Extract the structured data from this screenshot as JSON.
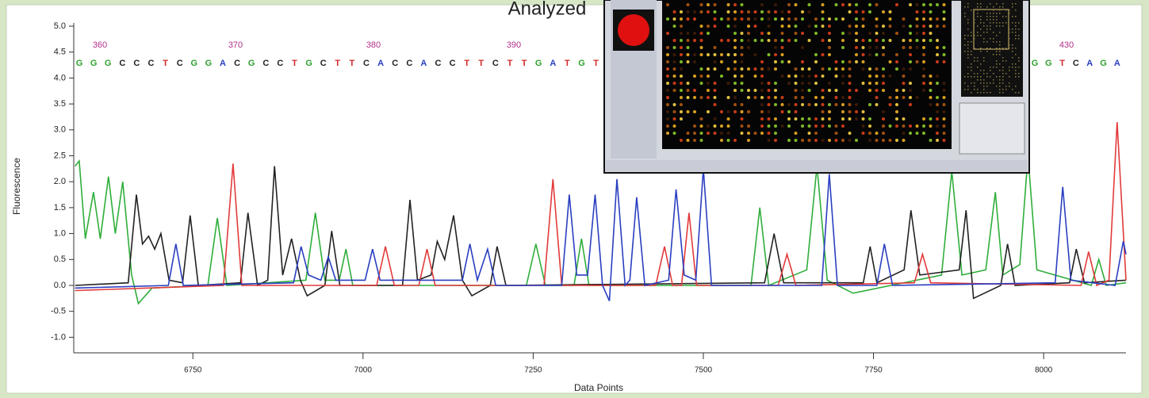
{
  "chart_data": {
    "type": "line",
    "title": "Analyzed",
    "xlabel": "Data Points",
    "ylabel": "Fluorescence",
    "xlim": [
      6575,
      8121
    ],
    "ylim": [
      -1.3,
      5.0
    ],
    "xticks": [
      6750,
      7000,
      7250,
      7500,
      7750,
      8000
    ],
    "yticks": [
      {
        "value": 5,
        "label": "5.0"
      },
      4.5,
      {
        "value": 4,
        "label": "4.0"
      },
      3.5,
      {
        "value": 3,
        "label": "3.0"
      },
      2.5,
      {
        "value": 2,
        "label": "2.0"
      },
      1.5,
      {
        "value": 1,
        "label": "1.0"
      },
      0.5,
      {
        "value": 0,
        "label": "0.0"
      },
      -0.5,
      {
        "value": -1,
        "label": "-1.0"
      }
    ],
    "base_numbers": [
      360,
      370,
      380,
      390,
      430
    ],
    "sequence": [
      [
        "G",
        "G",
        "G",
        "C",
        "C",
        "C",
        "T",
        "C",
        "G",
        "G",
        "A",
        "C",
        "G",
        "C",
        "C",
        "T",
        "G",
        "C",
        "T",
        "T",
        "C",
        "A",
        "C",
        "C",
        "A",
        "C",
        "C",
        "T",
        "T",
        "C",
        "T",
        "T",
        "G",
        "A",
        "T",
        "G",
        "T"
      ],
      [
        "G",
        "G",
        "T",
        "C",
        "A",
        "G",
        "A"
      ]
    ],
    "base_colors": {
      "A": "#2a3fc0",
      "C": "#222222",
      "G": "#2fa02f",
      "T": "#d42a2a"
    },
    "series": [
      {
        "color": "#2fae3a",
        "x": [
          6577,
          6583,
          6592,
          6604,
          6614,
          6626,
          6636,
          6647,
          6660,
          6670,
          6690,
          6772,
          6786,
          6800,
          6916,
          6930,
          6944,
          6965,
          6975,
          6985,
          7240,
          7254,
          7268,
          7310,
          7321,
          7332,
          7570,
          7583,
          7596,
          7652,
          7667,
          7682,
          7720,
          7850,
          7865,
          7880,
          7915,
          7929,
          7940,
          7965,
          7977,
          7990,
          8070,
          8081,
          8092,
          8121
        ],
        "values": [
          2.3,
          2.4,
          0.9,
          1.8,
          0.9,
          2.1,
          1.0,
          2.0,
          0.2,
          -0.35,
          -0.05,
          0.0,
          1.3,
          0.0,
          0.1,
          1.4,
          0.1,
          0.1,
          0.7,
          0.0,
          0.0,
          0.8,
          0.0,
          0.0,
          0.9,
          0.0,
          0.0,
          1.5,
          0.0,
          0.3,
          2.3,
          0.1,
          -0.15,
          0.2,
          2.2,
          0.2,
          0.3,
          1.8,
          0.2,
          0.4,
          2.5,
          0.3,
          0.0,
          0.5,
          0.0,
          0.05
        ]
      },
      {
        "color": "#222222",
        "x": [
          6577,
          6655,
          6667,
          6676,
          6685,
          6694,
          6703,
          6715,
          6735,
          6746,
          6758,
          6820,
          6831,
          6845,
          6860,
          6870,
          6882,
          6895,
          6908,
          6918,
          6944,
          6954,
          6966,
          7058,
          7069,
          7080,
          7100,
          7109,
          7120,
          7133,
          7146,
          7160,
          7187,
          7197,
          7210,
          7590,
          7604,
          7618,
          7735,
          7745,
          7755,
          7795,
          7805,
          7818,
          7876,
          7886,
          7897,
          7937,
          7947,
          7958,
          8038,
          8048,
          8060,
          8121
        ],
        "values": [
          0.0,
          0.05,
          1.75,
          0.8,
          0.95,
          0.7,
          1.0,
          0.1,
          0.05,
          1.35,
          0.0,
          0.05,
          1.4,
          0.0,
          0.1,
          2.3,
          0.2,
          0.9,
          0.1,
          -0.2,
          0.0,
          1.05,
          0.0,
          0.0,
          1.65,
          0.1,
          0.2,
          0.85,
          0.5,
          1.35,
          0.1,
          -0.2,
          0.0,
          0.75,
          0.0,
          0.05,
          1.0,
          0.05,
          0.05,
          0.75,
          0.05,
          0.3,
          1.45,
          0.2,
          0.3,
          1.45,
          -0.25,
          0.0,
          0.8,
          0.0,
          0.05,
          0.7,
          0.05,
          0.1
        ]
      },
      {
        "color": "#e23a3a",
        "x": [
          6577,
          6795,
          6809,
          6822,
          7020,
          7033,
          7046,
          7082,
          7094,
          7106,
          7266,
          7279,
          7292,
          7430,
          7443,
          7455,
          7468,
          7479,
          7490,
          7610,
          7623,
          7636,
          7810,
          7822,
          7834,
          8055,
          8066,
          8078,
          8096,
          8108,
          8121
        ],
        "values": [
          -0.1,
          0.0,
          2.35,
          0.0,
          0.0,
          0.75,
          0.0,
          0.0,
          0.7,
          0.0,
          0.0,
          2.05,
          0.0,
          0.0,
          0.75,
          0.0,
          0.0,
          1.4,
          0.0,
          0.0,
          0.6,
          0.0,
          0.05,
          0.6,
          0.05,
          0.0,
          0.65,
          0.0,
          0.1,
          3.15,
          0.1
        ]
      },
      {
        "color": "#2a3fc0",
        "x": [
          6577,
          6714,
          6725,
          6736,
          6898,
          6909,
          6920,
          6938,
          6949,
          6960,
          7003,
          7014,
          7025,
          7146,
          7157,
          7168,
          7183,
          7195,
          7292,
          7303,
          7314,
          7330,
          7341,
          7352,
          7362,
          7373,
          7385,
          7392,
          7402,
          7414,
          7449,
          7460,
          7472,
          7489,
          7500,
          7512,
          7674,
          7685,
          7697,
          7755,
          7766,
          7778,
          8017,
          8028,
          8040,
          8105,
          8117,
          8121
        ],
        "values": [
          -0.05,
          0.0,
          0.8,
          0.0,
          0.05,
          0.75,
          0.2,
          0.1,
          0.55,
          0.1,
          0.1,
          0.7,
          0.1,
          0.1,
          0.8,
          0.1,
          0.7,
          0.0,
          0.0,
          1.75,
          0.2,
          0.2,
          1.75,
          0.0,
          -0.3,
          2.05,
          0.0,
          0.1,
          1.7,
          0.0,
          0.1,
          1.85,
          0.2,
          0.1,
          2.25,
          0.0,
          0.0,
          2.15,
          0.0,
          0.0,
          0.8,
          0.0,
          0.05,
          1.9,
          0.1,
          0.0,
          0.85,
          0.6
        ]
      }
    ]
  }
}
